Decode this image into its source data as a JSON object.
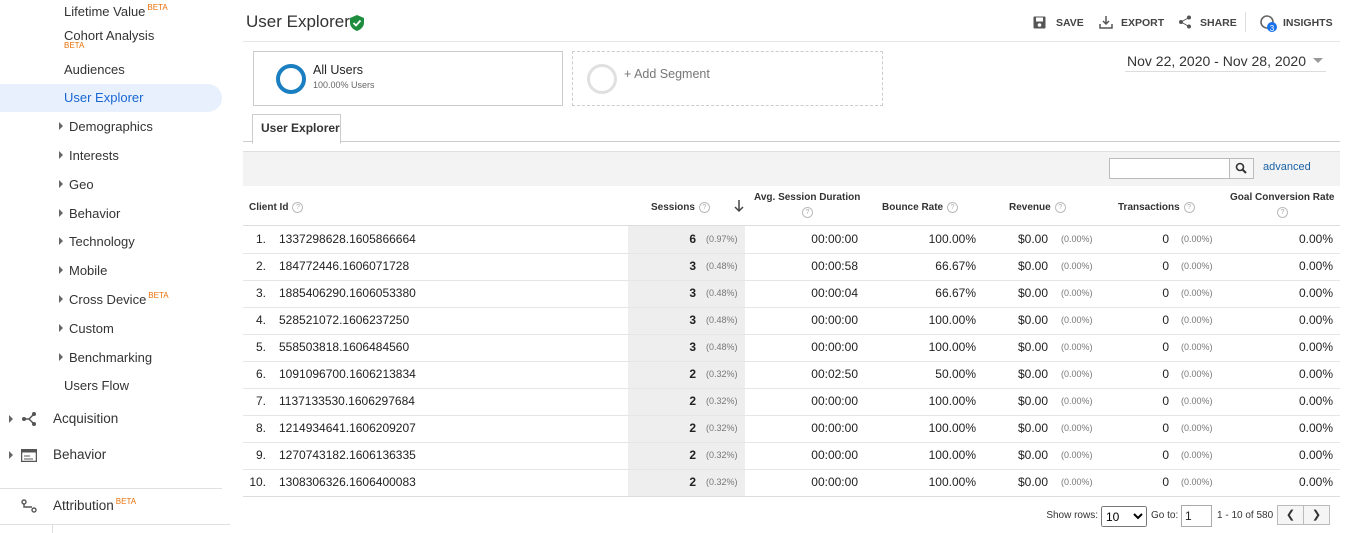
{
  "sidebar": {
    "items": [
      {
        "label": "Lifetime Value",
        "badge": "BETA"
      },
      {
        "label": "Cohort Analysis",
        "badge": "BETA"
      },
      {
        "label": "Audiences"
      },
      {
        "label": "User Explorer",
        "active": true
      },
      {
        "label": "Demographics",
        "expandable": true
      },
      {
        "label": "Interests",
        "expandable": true
      },
      {
        "label": "Geo",
        "expandable": true
      },
      {
        "label": "Behavior",
        "expandable": true
      },
      {
        "label": "Technology",
        "expandable": true
      },
      {
        "label": "Mobile",
        "expandable": true
      },
      {
        "label": "Cross Device",
        "badge": "BETA",
        "expandable": true
      },
      {
        "label": "Custom",
        "expandable": true
      },
      {
        "label": "Benchmarking",
        "expandable": true
      },
      {
        "label": "Users Flow"
      }
    ],
    "sections": [
      {
        "label": "Acquisition"
      },
      {
        "label": "Behavior"
      },
      {
        "label": "Attribution",
        "badge": "BETA"
      }
    ]
  },
  "header": {
    "title": "User Explorer",
    "actions": [
      "SAVE",
      "EXPORT",
      "SHARE",
      "INSIGHTS"
    ],
    "insights_badge": "3"
  },
  "segments": {
    "active": {
      "name": "All Users",
      "share": "100.00% Users"
    },
    "add": "+ Add Segment"
  },
  "date_range": "Nov 22, 2020 - Nov 28, 2020",
  "tab": "User Explorer",
  "search": {
    "advanced": "advanced"
  },
  "table": {
    "columns": [
      "Client Id",
      "Sessions",
      "Avg. Session Duration",
      "Bounce Rate",
      "Revenue",
      "Transactions",
      "Goal Conversion Rate"
    ],
    "rows": [
      [
        "1.",
        "1337298628.1605866664",
        "6",
        "(0.97%)",
        "00:00:00",
        "100.00%",
        "$0.00",
        "(0.00%)",
        "0",
        "(0.00%)",
        "0.00%"
      ],
      [
        "2.",
        "184772446.1606071728",
        "3",
        "(0.48%)",
        "00:00:58",
        "66.67%",
        "$0.00",
        "(0.00%)",
        "0",
        "(0.00%)",
        "0.00%"
      ],
      [
        "3.",
        "1885406290.1606053380",
        "3",
        "(0.48%)",
        "00:00:04",
        "66.67%",
        "$0.00",
        "(0.00%)",
        "0",
        "(0.00%)",
        "0.00%"
      ],
      [
        "4.",
        "528521072.1606237250",
        "3",
        "(0.48%)",
        "00:00:00",
        "100.00%",
        "$0.00",
        "(0.00%)",
        "0",
        "(0.00%)",
        "0.00%"
      ],
      [
        "5.",
        "558503818.1606484560",
        "3",
        "(0.48%)",
        "00:00:00",
        "100.00%",
        "$0.00",
        "(0.00%)",
        "0",
        "(0.00%)",
        "0.00%"
      ],
      [
        "6.",
        "1091096700.1606213834",
        "2",
        "(0.32%)",
        "00:02:50",
        "50.00%",
        "$0.00",
        "(0.00%)",
        "0",
        "(0.00%)",
        "0.00%"
      ],
      [
        "7.",
        "1137133530.1606297684",
        "2",
        "(0.32%)",
        "00:00:00",
        "100.00%",
        "$0.00",
        "(0.00%)",
        "0",
        "(0.00%)",
        "0.00%"
      ],
      [
        "8.",
        "1214934641.1606209207",
        "2",
        "(0.32%)",
        "00:00:00",
        "100.00%",
        "$0.00",
        "(0.00%)",
        "0",
        "(0.00%)",
        "0.00%"
      ],
      [
        "9.",
        "1270743182.1606136335",
        "2",
        "(0.32%)",
        "00:00:00",
        "100.00%",
        "$0.00",
        "(0.00%)",
        "0",
        "(0.00%)",
        "0.00%"
      ],
      [
        "10.",
        "1308306326.1606400083",
        "2",
        "(0.32%)",
        "00:00:00",
        "100.00%",
        "$0.00",
        "(0.00%)",
        "0",
        "(0.00%)",
        "0.00%"
      ]
    ]
  },
  "footer": {
    "show_rows_label": "Show rows:",
    "show_rows": "10",
    "goto_label": "Go to:",
    "goto": "1",
    "range": "1 - 10 of 580"
  }
}
